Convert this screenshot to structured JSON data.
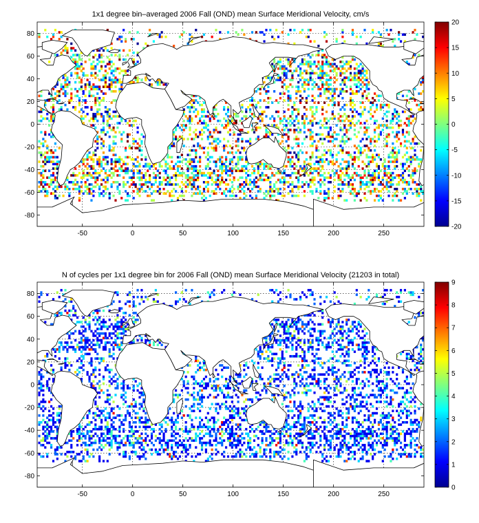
{
  "panels": [
    {
      "id": "velocity",
      "title": "1x1 degree bin–averaged 2006 Fall (OND) mean Surface Meridional Velocity, cm/s",
      "xticks": [
        -50,
        0,
        50,
        100,
        150,
        200,
        250
      ],
      "yticks": [
        80,
        60,
        40,
        20,
        0,
        -20,
        -40,
        -60,
        -80
      ],
      "xlim": [
        -95,
        290
      ],
      "ylim": [
        -90,
        90
      ],
      "colorbar": {
        "min": -20,
        "max": 20,
        "ticks": [
          20,
          15,
          10,
          5,
          0,
          -5,
          -10,
          -15,
          -20
        ],
        "colormap": "jet"
      }
    },
    {
      "id": "cycles",
      "title": "N of cycles per 1x1 degree bin for 2006 Fall (OND) mean Surface Meridional Velocity (21203 in total)",
      "xticks": [
        -50,
        0,
        50,
        100,
        150,
        200,
        250
      ],
      "yticks": [
        80,
        60,
        40,
        20,
        0,
        -20,
        -40,
        -60,
        -80
      ],
      "xlim": [
        -95,
        290
      ],
      "ylim": [
        -90,
        90
      ],
      "colorbar": {
        "min": 0,
        "max": 9,
        "ticks": [
          9,
          8,
          7,
          6,
          5,
          4,
          3,
          2,
          1,
          0
        ],
        "colormap": "jet"
      }
    }
  ],
  "colors": {
    "coastline": "#000000",
    "grid": "#000000",
    "background": "#ffffff"
  }
}
